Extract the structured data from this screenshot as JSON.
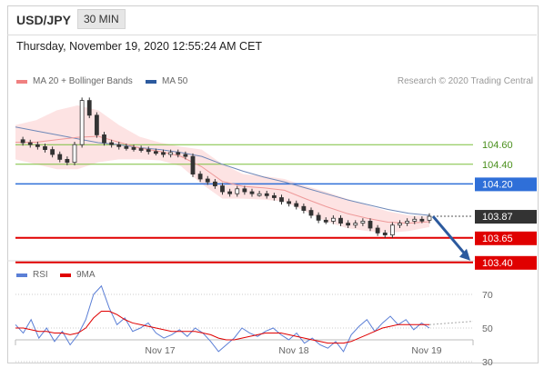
{
  "header": {
    "pair": "USD/JPY",
    "timeframe": "30 MIN"
  },
  "datetime": "Thursday, November 19, 2020 12:55:24 AM CET",
  "credit": "Research © 2020 Trading Central",
  "legend": {
    "bollinger": "MA 20 + Bollinger Bands",
    "ma50": "MA 50",
    "rsi": "RSI",
    "ma9": "9MA"
  },
  "colors": {
    "bollinger": "#f08080",
    "ma50": "#2c5a9e",
    "rsi": "#5b7fd6",
    "ma9": "#e00000",
    "support": "#e00000",
    "pivot": "#2f6fd8",
    "resistance": "#7cbf3c",
    "current": "#333333",
    "arrow": "#2c5a9e"
  },
  "chart_data": [
    {
      "type": "candlestick",
      "title": "USD/JPY 30 MIN",
      "x_ticks": [
        "Nov 17",
        "Nov 18",
        "Nov 19"
      ],
      "ylim": [
        103.3,
        105.0
      ],
      "levels": [
        {
          "name": "resistance-2",
          "label": "104.60",
          "value": 104.6,
          "style": "resistance"
        },
        {
          "name": "resistance-1",
          "label": "104.40",
          "value": 104.4,
          "style": "resistance"
        },
        {
          "name": "pivot",
          "label": "104.20",
          "value": 104.2,
          "style": "pivot"
        },
        {
          "name": "current",
          "label": "103.87",
          "value": 103.87,
          "style": "current"
        },
        {
          "name": "support-1",
          "label": "103.65",
          "value": 103.65,
          "style": "support"
        },
        {
          "name": "support-2",
          "label": "103.40",
          "value": 103.4,
          "style": "support"
        }
      ],
      "price_path": [
        104.65,
        104.62,
        104.6,
        104.58,
        104.55,
        104.5,
        104.45,
        104.42,
        104.6,
        105.05,
        104.9,
        104.7,
        104.62,
        104.6,
        104.58,
        104.57,
        104.56,
        104.55,
        104.53,
        104.52,
        104.5,
        104.52,
        104.5,
        104.48,
        104.3,
        104.25,
        104.22,
        104.18,
        104.12,
        104.1,
        104.15,
        104.12,
        104.1,
        104.1,
        104.08,
        104.06,
        104.02,
        104.0,
        103.97,
        103.93,
        103.88,
        103.83,
        103.82,
        103.85,
        103.8,
        103.78,
        103.8,
        103.82,
        103.75,
        103.7,
        103.68,
        103.78,
        103.8,
        103.82,
        103.84,
        103.83,
        103.87
      ],
      "bollinger_upper": [
        104.8,
        104.85,
        104.95,
        105.0,
        104.95,
        104.8,
        104.68,
        104.62,
        104.58,
        104.55,
        104.4,
        104.3,
        104.28,
        104.25,
        104.18,
        104.12,
        104.05,
        103.98,
        103.92,
        103.88,
        103.87
      ],
      "bollinger_lower": [
        104.45,
        104.4,
        104.35,
        104.35,
        104.42,
        104.45,
        104.45,
        104.44,
        104.38,
        104.2,
        104.05,
        104.05,
        104.04,
        104.02,
        103.92,
        103.82,
        103.75,
        103.72,
        103.7,
        103.72,
        103.76
      ],
      "ma50": [
        104.78,
        104.74,
        104.7,
        104.66,
        104.62,
        104.6,
        104.57,
        104.55,
        104.52,
        104.48,
        104.4,
        104.33,
        104.27,
        104.22,
        104.16,
        104.1,
        104.04,
        103.99,
        103.94,
        103.9,
        103.88
      ]
    },
    {
      "type": "line",
      "title": "RSI",
      "yticks": [
        70,
        50,
        30
      ],
      "ylim": [
        20,
        80
      ],
      "series": [
        {
          "name": "RSI",
          "values": [
            52,
            47,
            55,
            44,
            50,
            42,
            48,
            40,
            46,
            55,
            70,
            75,
            62,
            52,
            56,
            48,
            50,
            53,
            47,
            44,
            46,
            49,
            45,
            50,
            47,
            42,
            36,
            40,
            44,
            50,
            47,
            45,
            48,
            50,
            46,
            43,
            47,
            41,
            44,
            40,
            38,
            42,
            36,
            46,
            51,
            55,
            48,
            53,
            57,
            52,
            55,
            49,
            53,
            50
          ]
        },
        {
          "name": "9MA",
          "values": [
            50,
            50,
            49,
            48,
            48,
            47,
            47,
            46,
            47,
            50,
            56,
            60,
            60,
            58,
            55,
            53,
            52,
            51,
            50,
            49,
            48,
            48,
            48,
            48,
            47,
            46,
            44,
            43,
            43,
            44,
            45,
            46,
            47,
            47,
            47,
            46,
            45,
            44,
            43,
            42,
            41,
            41,
            41,
            42,
            44,
            46,
            48,
            50,
            51,
            52,
            52,
            52,
            52,
            52
          ]
        }
      ]
    }
  ]
}
